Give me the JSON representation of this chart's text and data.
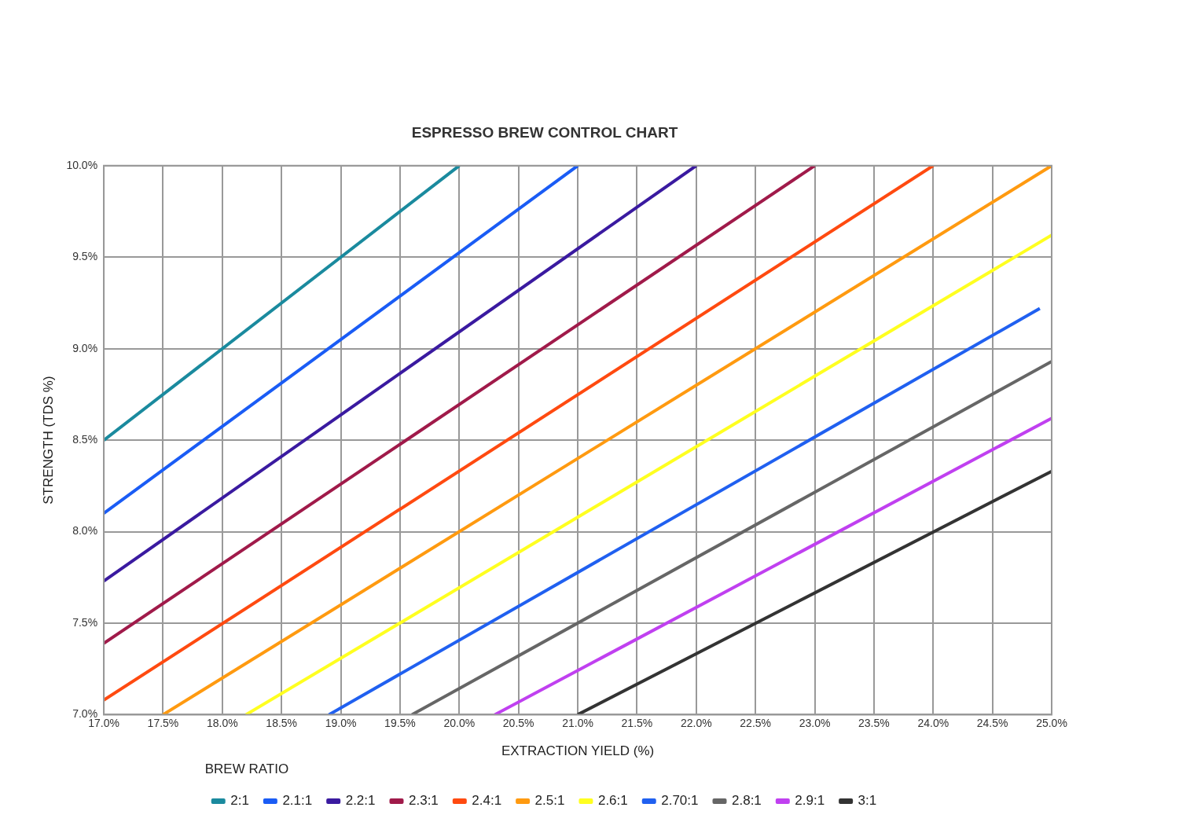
{
  "chart_data": {
    "type": "line",
    "title": "ESPRESSO BREW CONTROL CHART",
    "xlabel": "EXTRACTION YIELD (%)",
    "ylabel": "STRENGTH (TDS %)",
    "legend_title": "BREW RATIO",
    "legend": "bottom",
    "grid": true,
    "marker": "none",
    "line_style": "solid",
    "xlim": [
      17,
      25
    ],
    "ylim": [
      7,
      10
    ],
    "xticks": [
      {
        "value": 17,
        "label": "17.0%"
      },
      {
        "value": 17.5,
        "label": "17.5%"
      },
      {
        "value": 18,
        "label": "18.0%"
      },
      {
        "value": 18.5,
        "label": "18.5%"
      },
      {
        "value": 19,
        "label": "19.0%"
      },
      {
        "value": 19.5,
        "label": "19.5%"
      },
      {
        "value": 20,
        "label": "20.0%"
      },
      {
        "value": 20.5,
        "label": "20.5%"
      },
      {
        "value": 21,
        "label": "21.0%"
      },
      {
        "value": 21.5,
        "label": "21.5%"
      },
      {
        "value": 22,
        "label": "22.0%"
      },
      {
        "value": 22.5,
        "label": "22.5%"
      },
      {
        "value": 23,
        "label": "23.0%"
      },
      {
        "value": 23.5,
        "label": "23.5%"
      },
      {
        "value": 24,
        "label": "24.0%"
      },
      {
        "value": 24.5,
        "label": "24.5%"
      },
      {
        "value": 25,
        "label": "25.0%"
      }
    ],
    "yticks": [
      {
        "value": 7,
        "label": "7.0%"
      },
      {
        "value": 7.5,
        "label": "7.5%"
      },
      {
        "value": 8,
        "label": "8.0%"
      },
      {
        "value": 8.5,
        "label": "8.5%"
      },
      {
        "value": 9,
        "label": "9.0%"
      },
      {
        "value": 9.5,
        "label": "9.5%"
      },
      {
        "value": 10,
        "label": "10.0%"
      }
    ],
    "series": [
      {
        "name": "2:1",
        "color": "#1a8a9e",
        "x": [
          17,
          20
        ],
        "values": [
          8.5,
          10
        ]
      },
      {
        "name": "2.1:1",
        "color": "#1a5cf5",
        "x": [
          17,
          21
        ],
        "values": [
          8.1,
          10
        ]
      },
      {
        "name": "2.2:1",
        "color": "#3a1aa0",
        "x": [
          17,
          22
        ],
        "values": [
          7.73,
          10
        ]
      },
      {
        "name": "2.3:1",
        "color": "#a01a4a",
        "x": [
          17,
          23
        ],
        "values": [
          7.39,
          10
        ]
      },
      {
        "name": "2.4:1",
        "color": "#ff4a10",
        "x": [
          17,
          24
        ],
        "values": [
          7.08,
          10
        ]
      },
      {
        "name": "2.5:1",
        "color": "#ff9a10",
        "x": [
          17.5,
          25
        ],
        "values": [
          7,
          10
        ]
      },
      {
        "name": "2.6:1",
        "color": "#ffff20",
        "x": [
          18.2,
          25
        ],
        "values": [
          7,
          9.62
        ]
      },
      {
        "name": "2.70:1",
        "color": "#2060f0",
        "x": [
          18.9,
          24.9
        ],
        "values": [
          7,
          9.22
        ]
      },
      {
        "name": "2.8:1",
        "color": "#666666",
        "x": [
          19.6,
          25
        ],
        "values": [
          7,
          8.93
        ]
      },
      {
        "name": "2.9:1",
        "color": "#c040f0",
        "x": [
          20.3,
          25
        ],
        "values": [
          7,
          8.62
        ]
      },
      {
        "name": "3:1",
        "color": "#333333",
        "x": [
          21,
          25
        ],
        "values": [
          7,
          8.33
        ]
      }
    ]
  }
}
